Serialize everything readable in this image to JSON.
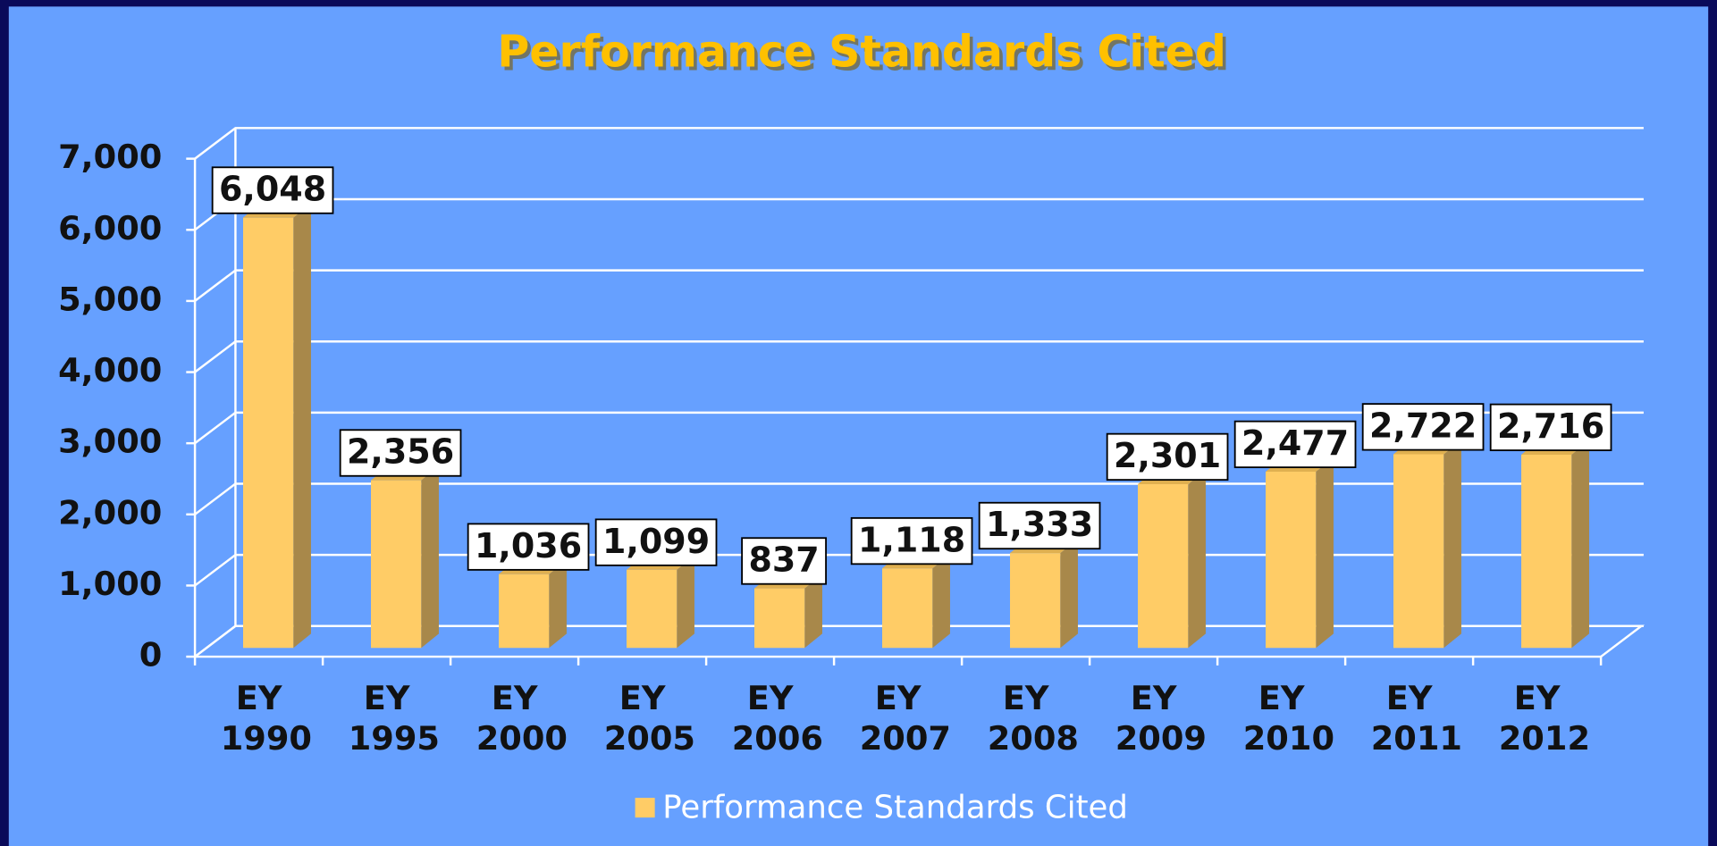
{
  "chart_data": {
    "type": "bar3d",
    "title": "Performance Standards Cited",
    "categories": [
      "EY 1990",
      "EY 1995",
      "EY 2000",
      "EY 2005",
      "EY 2006",
      "EY 2007",
      "EY 2008",
      "EY 2009",
      "EY 2010",
      "EY 2011",
      "EY 2012"
    ],
    "series": [
      {
        "name": "Performance Standards Cited",
        "color": "#ffcc66",
        "values": [
          6048,
          2356,
          1036,
          1099,
          837,
          1118,
          1333,
          2301,
          2477,
          2722,
          2716
        ],
        "value_labels": [
          "6,048",
          "2,356",
          "1,036",
          "1,099",
          "837",
          "1,118",
          "1,333",
          "2,301",
          "2,477",
          "2,722",
          "2,716"
        ]
      }
    ],
    "ylim": [
      0,
      7000
    ],
    "yticks": [
      0,
      {
        "value": 1000,
        "label": "1,000"
      },
      {
        "value": 2000,
        "label": "2,000"
      },
      {
        "value": 3000,
        "label": "3,000"
      },
      {
        "value": 4000,
        "label": "4,000"
      },
      {
        "value": 5000,
        "label": "5,000"
      },
      {
        "value": 6000,
        "label": "6,000"
      },
      {
        "value": 7000,
        "label": "7,000"
      }
    ],
    "grid": true,
    "legend": "bottom"
  }
}
